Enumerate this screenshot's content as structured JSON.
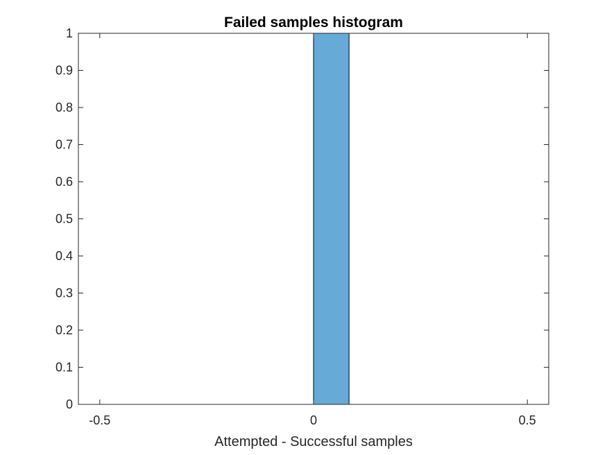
{
  "chart_data": {
    "type": "bar",
    "title": "Failed samples histogram",
    "xlabel": "Attempted - Successful samples",
    "ylabel": "",
    "xlim": [
      -0.55,
      0.55
    ],
    "ylim": [
      0,
      1
    ],
    "xticks": [
      -0.5,
      0,
      0.5
    ],
    "xtick_labels": [
      "-0.5",
      "0",
      "0.5"
    ],
    "yticks": [
      0,
      0.1,
      0.2,
      0.3,
      0.4,
      0.5,
      0.6,
      0.7,
      0.8,
      0.9,
      1
    ],
    "ytick_labels": [
      "0",
      "0.1",
      "0.2",
      "0.3",
      "0.4",
      "0.5",
      "0.6",
      "0.7",
      "0.8",
      "0.9",
      "1"
    ],
    "bins": [
      {
        "x_start": 0,
        "x_end": 0.083,
        "value": 1
      }
    ],
    "grid": false,
    "colors": {
      "bar_fill": "#66aad7",
      "bar_edge": "#000000",
      "axis": "#262626"
    }
  }
}
